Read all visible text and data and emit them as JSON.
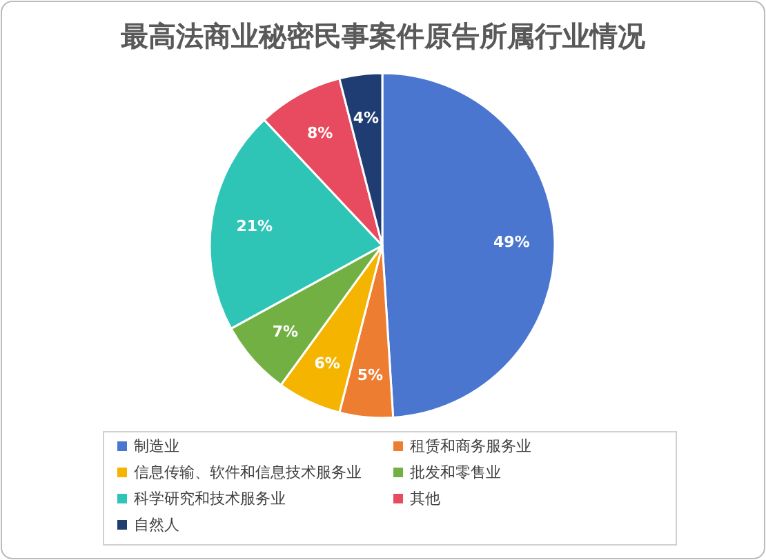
{
  "chart_data": {
    "type": "pie",
    "title": "最高法商业秘密民事案件原告所属行业情况",
    "categories": [
      "制造业",
      "租赁和商务服务业",
      "信息传输、软件和信息技术服务业",
      "批发和零售业",
      "科学研究和技术服务业",
      "其他",
      "自然人"
    ],
    "values": [
      49,
      5,
      6,
      7,
      21,
      8,
      4
    ],
    "colors": [
      "#4a76d0",
      "#ed7d31",
      "#f4b400",
      "#72b043",
      "#2ec4b6",
      "#e84a5f",
      "#1f3c73"
    ],
    "value_labels": [
      "49%",
      "5%",
      "6%",
      "7%",
      "21%",
      "8%",
      "4%"
    ],
    "legend": "bottom"
  }
}
